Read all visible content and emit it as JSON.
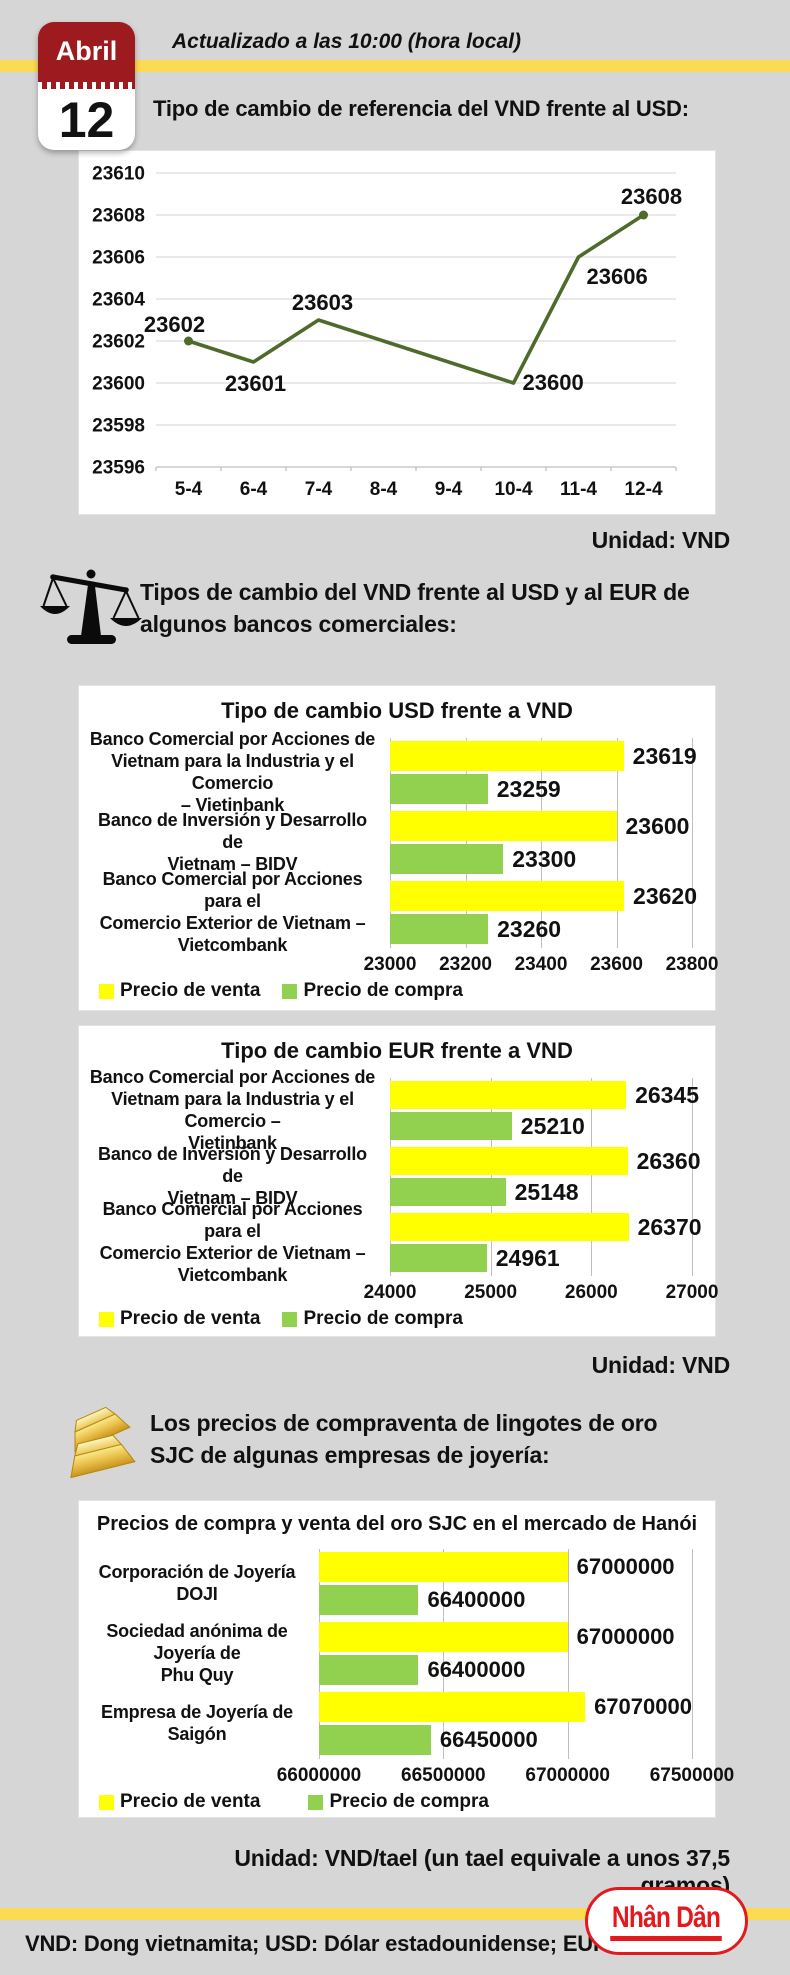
{
  "page": {
    "background": "#d6d6d6",
    "accent_yellow": "#fbdb52"
  },
  "header": {
    "calendar": {
      "month": "Abril",
      "day": "12",
      "red": "#9d1b1f"
    },
    "updated": "Actualizado a las 10:00 (hora local)",
    "title": "Tipo de cambio de referencia del VND frente al USD:"
  },
  "sections": {
    "banks_heading": [
      "Tipos de cambio del VND frente al USD y al EUR de",
      "algunos bancos comerciales:"
    ],
    "gold_heading": [
      "Los precios de compraventa de lingotes de oro",
      "SJC de algunas empresas de joyería:"
    ]
  },
  "units": {
    "after_line_chart": "Unidad: VND",
    "after_bank_charts": "Unidad: VND",
    "after_gold_chart": "Unidad: VND/tael (un tael equivale a unos 37,5 gramos)"
  },
  "legend": {
    "sell": "Precio de venta",
    "buy": "Precio de compra"
  },
  "footer": {
    "abbreviations": "VND: Dong vietnamita; USD: Dólar estadounidense; EUR: Euro",
    "logo_text": "Nhân Dân",
    "logo_color": "#e3191e"
  },
  "icons": {
    "calendar": "calendar-icon",
    "balance": "scales-icon",
    "gold": "gold-bars-icon"
  },
  "chart_data": [
    {
      "id": "reference-rate",
      "type": "line",
      "title": "Tipo de cambio de referencia del VND frente al USD",
      "categories": [
        "5-4",
        "6-4",
        "7-4",
        "8-4",
        "9-4",
        "10-4",
        "11-4",
        "12-4"
      ],
      "values": [
        23602,
        23601,
        23603,
        null,
        null,
        23600,
        23606,
        23608
      ],
      "ylim": [
        23596,
        23610
      ],
      "ytick_step": 2,
      "line_color": "#4f6b2b",
      "grid": true,
      "legend_position": "none",
      "unit": "VND"
    },
    {
      "id": "usd-banks",
      "type": "bar",
      "orientation": "horizontal",
      "title": "Tipo de cambio USD frente a VND",
      "categories": [
        [
          "Banco Comercial por Acciones de",
          "Vietnam para la Industria y el Comercio",
          "– Vietinbank"
        ],
        [
          "Banco de Inversión y Desarrollo de",
          "Vietnam – BIDV"
        ],
        [
          "Banco Comercial por Acciones para el",
          "Comercio Exterior de Vietnam –",
          "Vietcombank"
        ]
      ],
      "series": [
        {
          "name": "Precio de venta",
          "color": "#ffff00",
          "values": [
            23619,
            23600,
            23620
          ]
        },
        {
          "name": "Precio de compra",
          "color": "#92d050",
          "values": [
            23259,
            23300,
            23260
          ]
        }
      ],
      "xlim": [
        23000,
        23800
      ],
      "xticks": [
        23000,
        23200,
        23400,
        23600,
        23800
      ],
      "grid": true,
      "legend_position": "bottom-left",
      "unit": "VND"
    },
    {
      "id": "eur-banks",
      "type": "bar",
      "orientation": "horizontal",
      "title": "Tipo de cambio EUR frente a VND",
      "categories": [
        [
          "Banco Comercial por Acciones de",
          "Vietnam para la Industria y el Comercio –",
          "Vietinbank"
        ],
        [
          "Banco de Inversión y Desarrollo de",
          "Vietnam – BIDV"
        ],
        [
          "Banco Comercial por Acciones para el",
          "Comercio Exterior de Vietnam –",
          "Vietcombank"
        ]
      ],
      "series": [
        {
          "name": "Precio de venta",
          "color": "#ffff00",
          "values": [
            26345,
            26360,
            26370
          ]
        },
        {
          "name": "Precio de compra",
          "color": "#92d050",
          "values": [
            25210,
            25148,
            24961
          ]
        }
      ],
      "xlim": [
        24000,
        27000
      ],
      "xticks": [
        24000,
        25000,
        26000,
        27000
      ],
      "grid": true,
      "legend_position": "bottom-left",
      "unit": "VND"
    },
    {
      "id": "gold-sjc",
      "type": "bar",
      "orientation": "horizontal",
      "title": "Precios de compra y venta del oro SJC en el mercado de Hanói",
      "categories": [
        [
          "Corporación de Joyería DOJI"
        ],
        [
          "Sociedad anónima de Joyería de",
          "Phu Quy"
        ],
        [
          "Empresa de Joyería de Saigón"
        ]
      ],
      "series": [
        {
          "name": "Precio de venta",
          "color": "#ffff00",
          "values": [
            67000000,
            67000000,
            67070000
          ]
        },
        {
          "name": "Precio de compra",
          "color": "#92d050",
          "values": [
            66400000,
            66400000,
            66450000
          ]
        }
      ],
      "xlim": [
        66000000,
        67500000
      ],
      "xticks": [
        66000000,
        66500000,
        67000000,
        67500000
      ],
      "grid": true,
      "legend_position": "bottom-left",
      "unit": "VND/tael"
    }
  ]
}
